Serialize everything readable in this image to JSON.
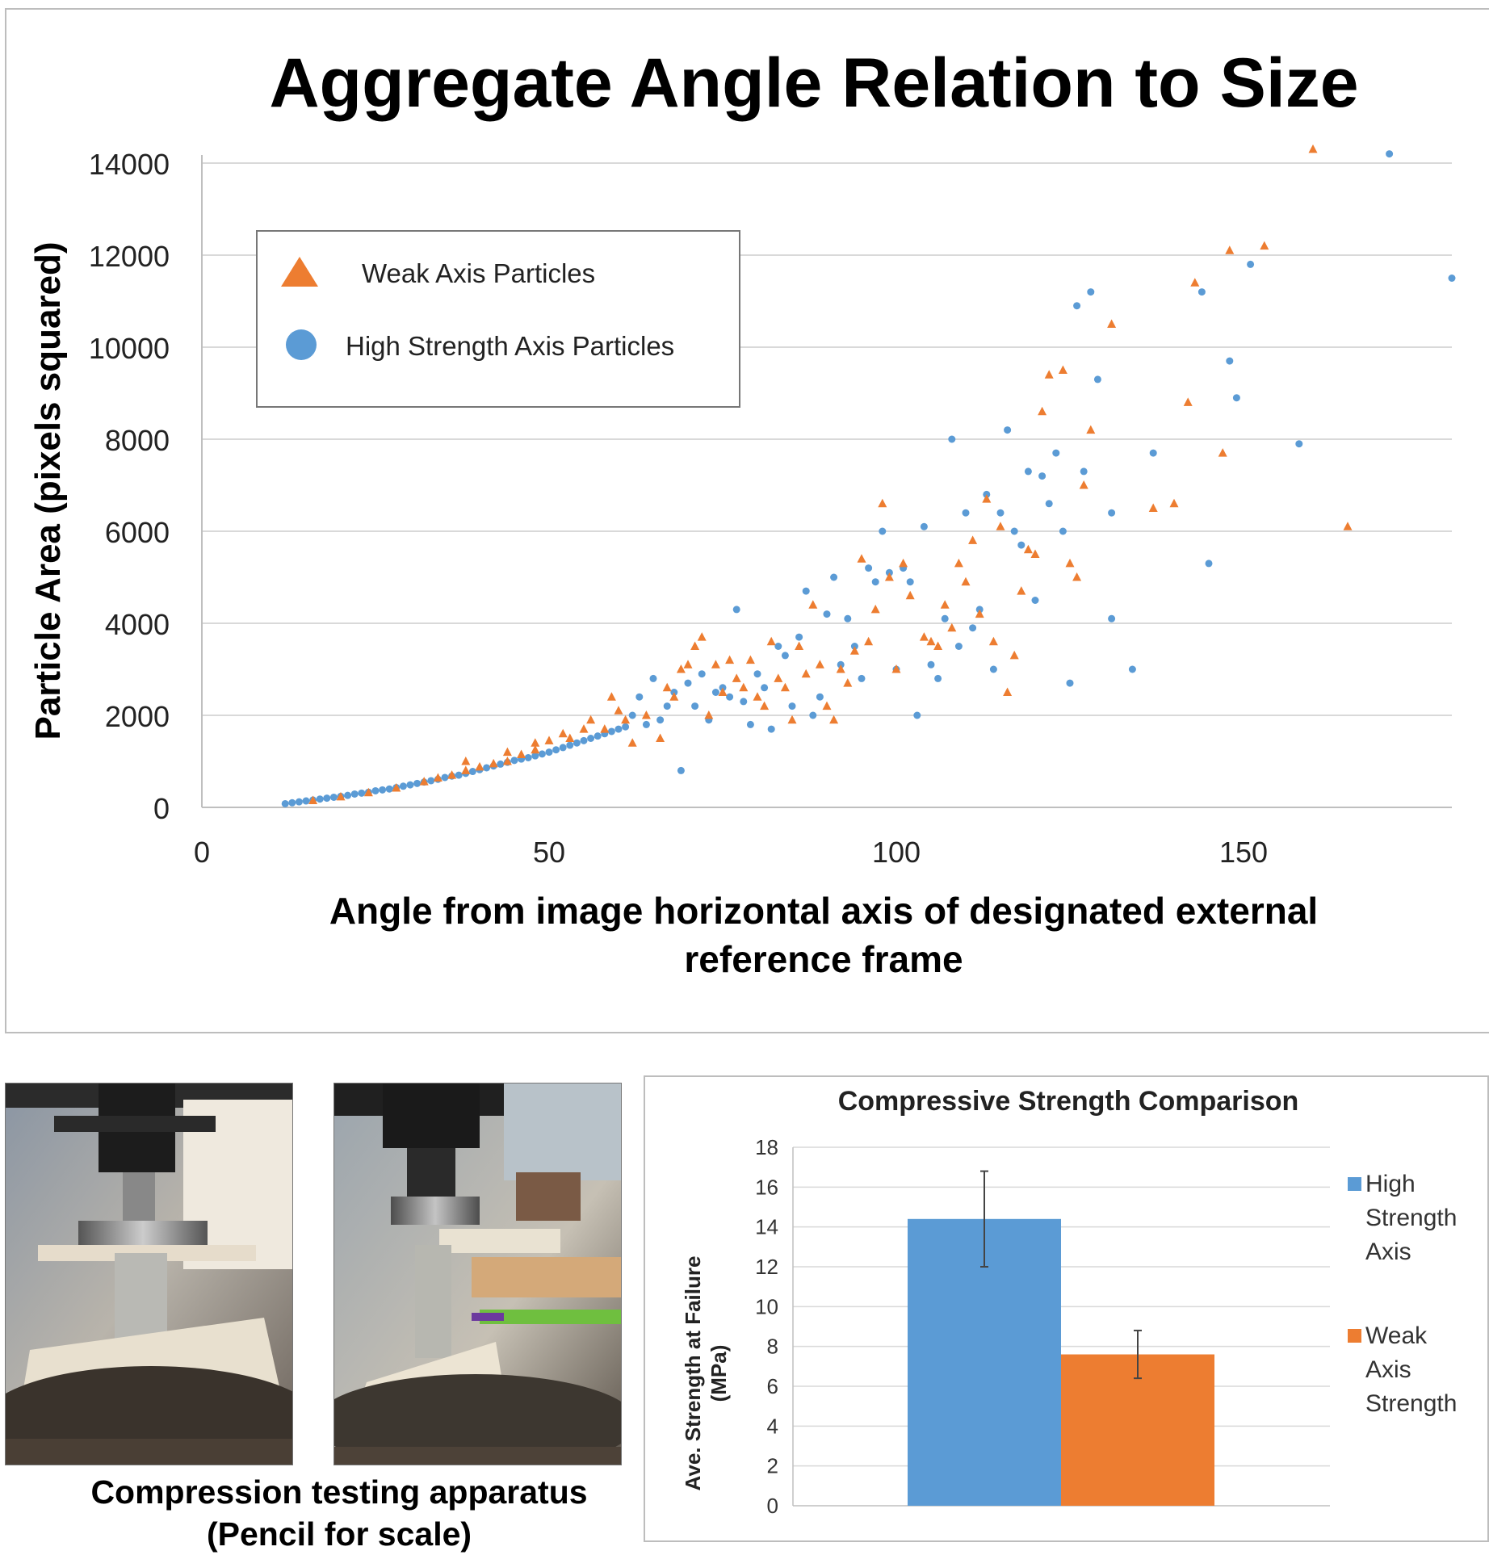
{
  "chart_data": [
    {
      "type": "scatter",
      "title": "Aggregate Angle Relation to Size",
      "xlabel": "Angle from image horizontal axis of designated external reference frame",
      "ylabel": "Particle Area (pixels squared)",
      "xlim": [
        0,
        180
      ],
      "ylim": [
        0,
        14000
      ],
      "x_ticks": [
        0,
        50,
        100,
        150
      ],
      "y_ticks": [
        0,
        2000,
        4000,
        6000,
        8000,
        10000,
        12000,
        14000
      ],
      "grid": "horizontal",
      "legend_position": "top-left",
      "colors": {
        "weak": "#ED7D31",
        "high": "#5B9BD5",
        "grid": "#d9d9d9",
        "axis": "#bfbfbf"
      },
      "series": [
        {
          "name": "Weak Axis Particles",
          "marker": "triangle",
          "points": [
            [
              16,
              150
            ],
            [
              20,
              230
            ],
            [
              24,
              320
            ],
            [
              28,
              420
            ],
            [
              32,
              560
            ],
            [
              34,
              640
            ],
            [
              36,
              700
            ],
            [
              38,
              800
            ],
            [
              38,
              1000
            ],
            [
              40,
              880
            ],
            [
              42,
              950
            ],
            [
              44,
              1000
            ],
            [
              44,
              1200
            ],
            [
              46,
              1150
            ],
            [
              48,
              1250
            ],
            [
              48,
              1400
            ],
            [
              50,
              1450
            ],
            [
              52,
              1600
            ],
            [
              53,
              1500
            ],
            [
              55,
              1700
            ],
            [
              56,
              1900
            ],
            [
              58,
              1700
            ],
            [
              59,
              2400
            ],
            [
              60,
              2100
            ],
            [
              61,
              1900
            ],
            [
              62,
              1400
            ],
            [
              64,
              2000
            ],
            [
              66,
              1500
            ],
            [
              67,
              2600
            ],
            [
              68,
              2400
            ],
            [
              69,
              3000
            ],
            [
              70,
              3100
            ],
            [
              71,
              3500
            ],
            [
              72,
              3700
            ],
            [
              73,
              2000
            ],
            [
              74,
              3100
            ],
            [
              75,
              2500
            ],
            [
              76,
              3200
            ],
            [
              77,
              2800
            ],
            [
              78,
              2600
            ],
            [
              79,
              3200
            ],
            [
              80,
              2400
            ],
            [
              81,
              2200
            ],
            [
              82,
              3600
            ],
            [
              83,
              2800
            ],
            [
              84,
              2600
            ],
            [
              85,
              1900
            ],
            [
              86,
              3500
            ],
            [
              87,
              2900
            ],
            [
              88,
              4400
            ],
            [
              89,
              3100
            ],
            [
              90,
              2200
            ],
            [
              91,
              1900
            ],
            [
              92,
              3000
            ],
            [
              93,
              2700
            ],
            [
              94,
              3400
            ],
            [
              95,
              5400
            ],
            [
              96,
              3600
            ],
            [
              97,
              4300
            ],
            [
              98,
              6600
            ],
            [
              99,
              5000
            ],
            [
              100,
              3000
            ],
            [
              101,
              5300
            ],
            [
              102,
              4600
            ],
            [
              104,
              3700
            ],
            [
              105,
              3600
            ],
            [
              106,
              3500
            ],
            [
              107,
              4400
            ],
            [
              108,
              3900
            ],
            [
              109,
              5300
            ],
            [
              110,
              4900
            ],
            [
              111,
              5800
            ],
            [
              112,
              4200
            ],
            [
              113,
              6700
            ],
            [
              114,
              3600
            ],
            [
              115,
              6100
            ],
            [
              116,
              2500
            ],
            [
              117,
              3300
            ],
            [
              118,
              4700
            ],
            [
              119,
              5600
            ],
            [
              120,
              5500
            ],
            [
              121,
              8600
            ],
            [
              122,
              9400
            ],
            [
              124,
              9500
            ],
            [
              125,
              5300
            ],
            [
              126,
              5000
            ],
            [
              127,
              7000
            ],
            [
              128,
              8200
            ],
            [
              131,
              10500
            ],
            [
              137,
              6500
            ],
            [
              140,
              6600
            ],
            [
              142,
              8800
            ],
            [
              143,
              11400
            ],
            [
              147,
              7700
            ],
            [
              148,
              12100
            ],
            [
              153,
              12200
            ],
            [
              160,
              14300
            ],
            [
              165,
              6100
            ]
          ]
        },
        {
          "name": "High Strength Axis Particles",
          "marker": "circle",
          "points": [
            [
              12,
              80
            ],
            [
              13,
              100
            ],
            [
              14,
              120
            ],
            [
              15,
              140
            ],
            [
              16,
              160
            ],
            [
              17,
              180
            ],
            [
              18,
              200
            ],
            [
              19,
              220
            ],
            [
              20,
              240
            ],
            [
              21,
              260
            ],
            [
              22,
              290
            ],
            [
              23,
              310
            ],
            [
              24,
              330
            ],
            [
              25,
              360
            ],
            [
              26,
              380
            ],
            [
              27,
              400
            ],
            [
              28,
              430
            ],
            [
              29,
              460
            ],
            [
              30,
              490
            ],
            [
              31,
              520
            ],
            [
              32,
              550
            ],
            [
              33,
              580
            ],
            [
              34,
              610
            ],
            [
              35,
              650
            ],
            [
              36,
              680
            ],
            [
              37,
              700
            ],
            [
              38,
              740
            ],
            [
              39,
              780
            ],
            [
              40,
              820
            ],
            [
              41,
              860
            ],
            [
              42,
              900
            ],
            [
              43,
              940
            ],
            [
              44,
              980
            ],
            [
              45,
              1020
            ],
            [
              46,
              1050
            ],
            [
              47,
              1080
            ],
            [
              48,
              1120
            ],
            [
              49,
              1160
            ],
            [
              50,
              1200
            ],
            [
              51,
              1250
            ],
            [
              52,
              1300
            ],
            [
              53,
              1350
            ],
            [
              54,
              1400
            ],
            [
              55,
              1450
            ],
            [
              56,
              1500
            ],
            [
              57,
              1550
            ],
            [
              58,
              1600
            ],
            [
              59,
              1650
            ],
            [
              60,
              1700
            ],
            [
              61,
              1750
            ],
            [
              62,
              2000
            ],
            [
              63,
              2400
            ],
            [
              64,
              1800
            ],
            [
              65,
              2800
            ],
            [
              66,
              1900
            ],
            [
              67,
              2200
            ],
            [
              68,
              2500
            ],
            [
              69,
              800
            ],
            [
              70,
              2700
            ],
            [
              71,
              2200
            ],
            [
              72,
              2900
            ],
            [
              73,
              1900
            ],
            [
              74,
              2500
            ],
            [
              75,
              2600
            ],
            [
              76,
              2400
            ],
            [
              77,
              4300
            ],
            [
              78,
              2300
            ],
            [
              79,
              1800
            ],
            [
              80,
              2900
            ],
            [
              81,
              2600
            ],
            [
              82,
              1700
            ],
            [
              83,
              3500
            ],
            [
              84,
              3300
            ],
            [
              85,
              2200
            ],
            [
              86,
              3700
            ],
            [
              87,
              4700
            ],
            [
              88,
              2000
            ],
            [
              89,
              2400
            ],
            [
              90,
              4200
            ],
            [
              91,
              5000
            ],
            [
              92,
              3100
            ],
            [
              93,
              4100
            ],
            [
              94,
              3500
            ],
            [
              95,
              2800
            ],
            [
              96,
              5200
            ],
            [
              97,
              4900
            ],
            [
              98,
              6000
            ],
            [
              99,
              5100
            ],
            [
              100,
              3000
            ],
            [
              101,
              5200
            ],
            [
              102,
              4900
            ],
            [
              103,
              2000
            ],
            [
              104,
              6100
            ],
            [
              105,
              3100
            ],
            [
              106,
              2800
            ],
            [
              107,
              4100
            ],
            [
              108,
              8000
            ],
            [
              109,
              3500
            ],
            [
              110,
              6400
            ],
            [
              111,
              3900
            ],
            [
              112,
              4300
            ],
            [
              113,
              6800
            ],
            [
              114,
              3000
            ],
            [
              115,
              6400
            ],
            [
              116,
              8200
            ],
            [
              117,
              6000
            ],
            [
              118,
              5700
            ],
            [
              119,
              7300
            ],
            [
              120,
              4500
            ],
            [
              121,
              7200
            ],
            [
              122,
              6600
            ],
            [
              123,
              7700
            ],
            [
              124,
              6000
            ],
            [
              125,
              2700
            ],
            [
              126,
              10900
            ],
            [
              127,
              7300
            ],
            [
              128,
              11200
            ],
            [
              129,
              9300
            ],
            [
              131,
              6400
            ],
            [
              131,
              4100
            ],
            [
              134,
              3000
            ],
            [
              137,
              7700
            ],
            [
              144,
              11200
            ],
            [
              145,
              5300
            ],
            [
              148,
              9700
            ],
            [
              149,
              8900
            ],
            [
              151,
              11800
            ],
            [
              158,
              7900
            ],
            [
              171,
              14200
            ],
            [
              180,
              11500
            ]
          ]
        }
      ]
    },
    {
      "type": "bar",
      "title": "Compressive Strength Comparison",
      "xlabel": "",
      "ylabel": "Ave. Strength at Failure (MPa)",
      "ylim": [
        0,
        18
      ],
      "y_ticks": [
        0,
        2,
        4,
        6,
        8,
        10,
        12,
        14,
        16,
        18
      ],
      "grid": "horizontal",
      "legend_position": "right",
      "series": [
        {
          "name": "High Strength Axis",
          "value": 14.4,
          "error": [
            12.0,
            16.8
          ],
          "color": "#5B9BD5"
        },
        {
          "name": "Weak Axis Strength",
          "value": 7.6,
          "error": [
            6.4,
            8.8
          ],
          "color": "#ED7D31"
        }
      ]
    }
  ],
  "photos": {
    "caption_line1": "Compression testing apparatus",
    "caption_line2": "(Pencil for scale)"
  }
}
